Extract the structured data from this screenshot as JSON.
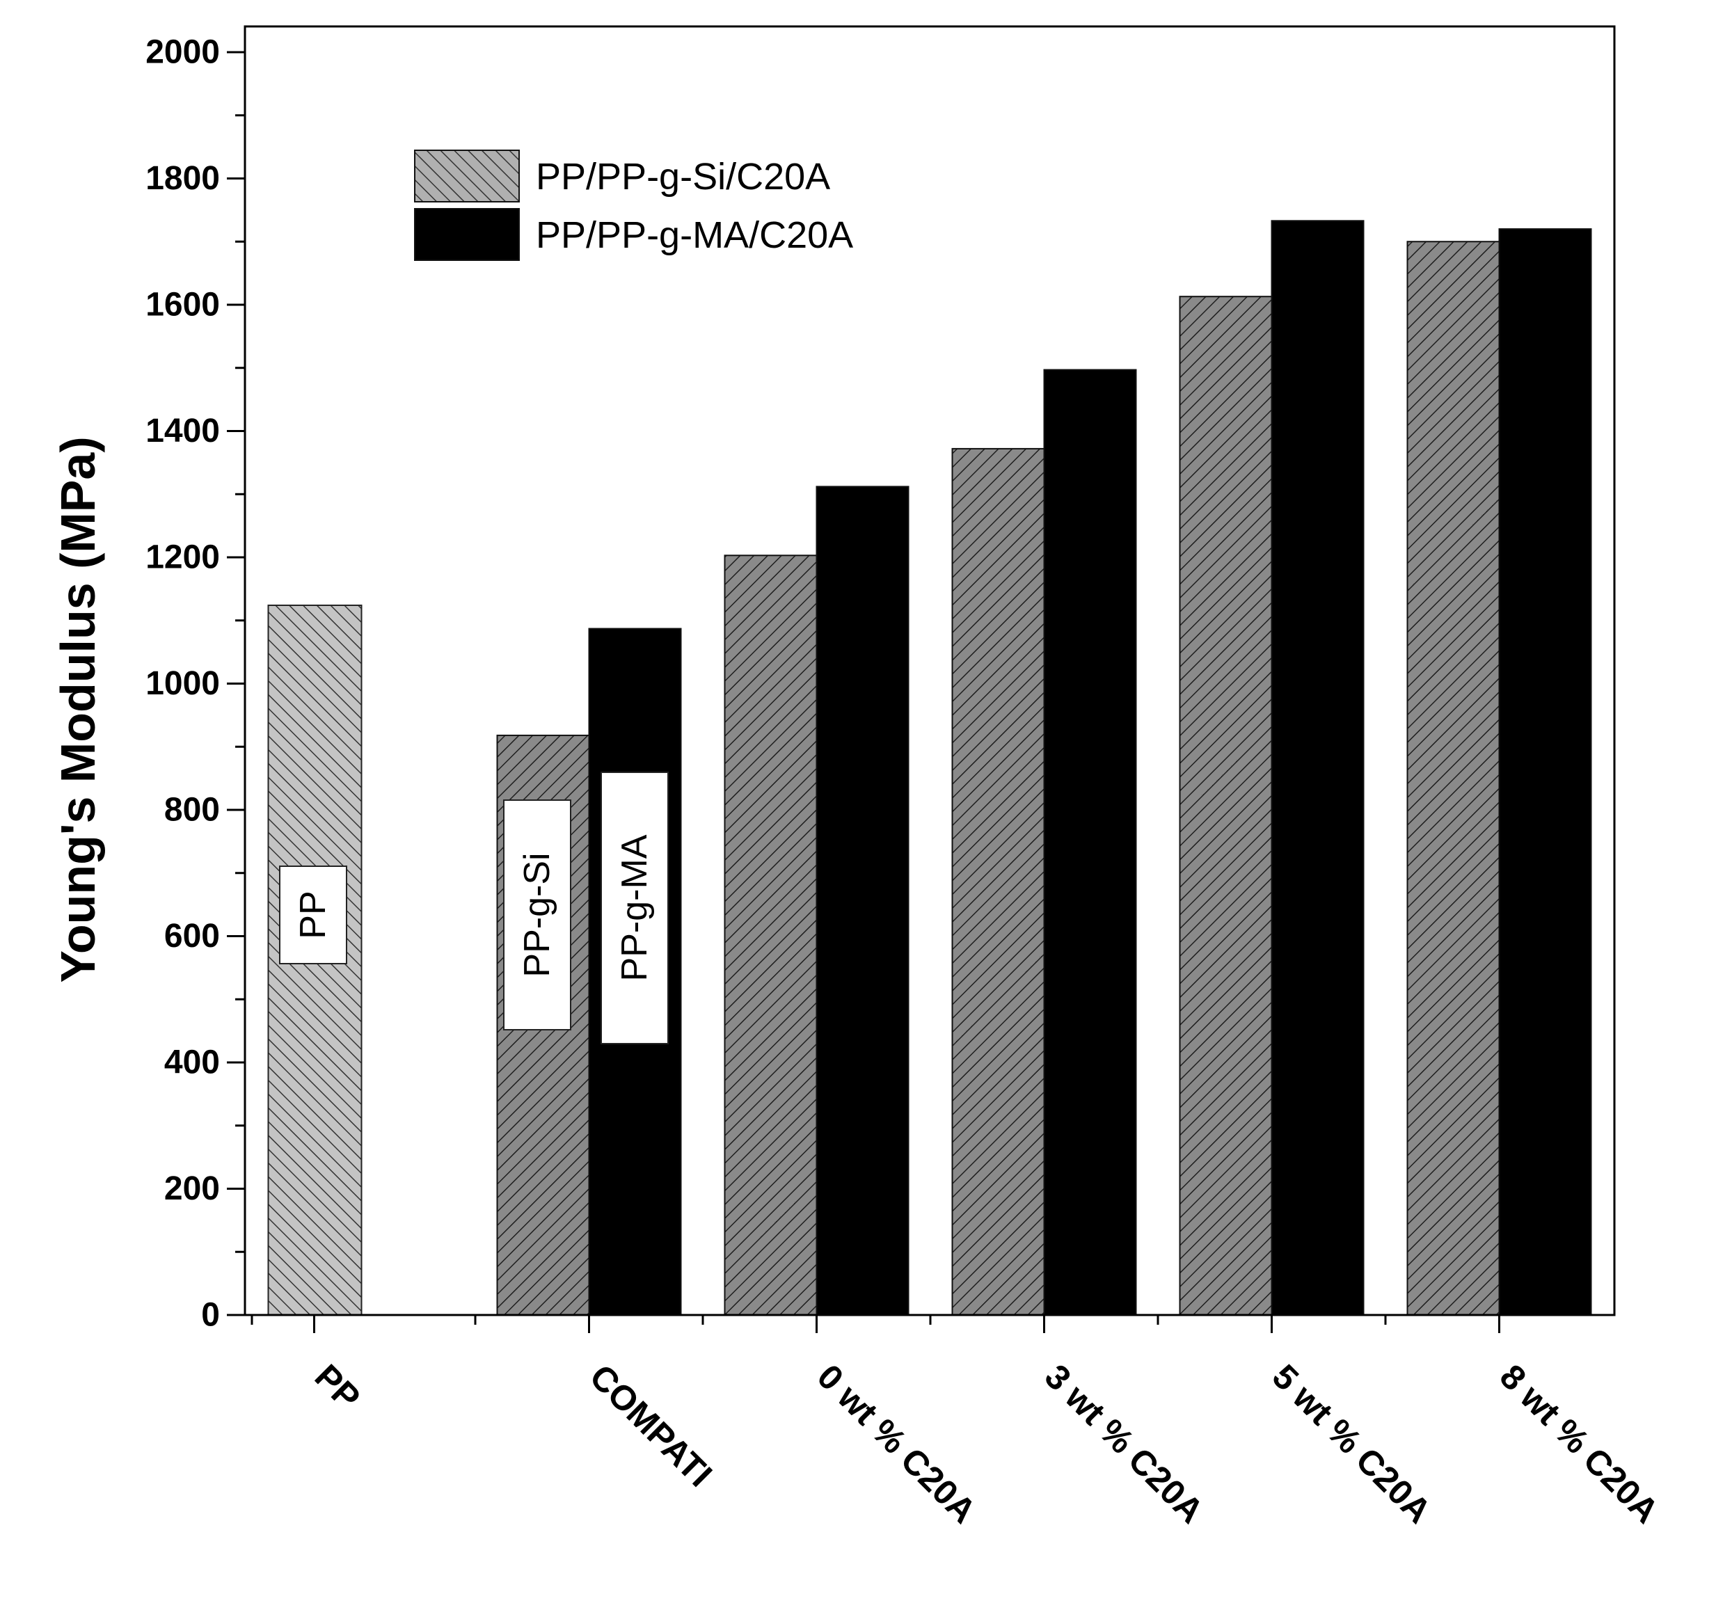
{
  "chart_data": {
    "type": "bar",
    "ylabel": "Young's Modulus (MPa)",
    "xlabel": "",
    "ylim": [
      0,
      2000
    ],
    "yticks": [
      0,
      200,
      400,
      600,
      800,
      1000,
      1200,
      1400,
      1600,
      1800,
      2000
    ],
    "categories": [
      "PP",
      "COMPATI",
      "0 wt % C20A",
      "3 wt % C20A",
      "5 wt % C20A",
      "8 wt % C20A"
    ],
    "series": [
      {
        "name": "PP/PP-g-Si/C20A",
        "values": [
          null,
          918,
          1203,
          1372,
          1613,
          1700
        ]
      },
      {
        "name": "PP/PP-g-MA/C20A",
        "values": [
          null,
          1087,
          1312,
          1497,
          1733,
          1720
        ]
      }
    ],
    "pp_bar": {
      "category": "PP",
      "value": 1124
    },
    "annotations": [
      "PP",
      "PP-g-Si",
      "PP-g-MA"
    ],
    "legend_position": "top-left",
    "grid": false,
    "colors": {
      "pp_bar": "#c4c4c4",
      "si_series": "#8a8a8a",
      "ma_series": "#000000",
      "hatch": "#2a2a2a"
    }
  }
}
